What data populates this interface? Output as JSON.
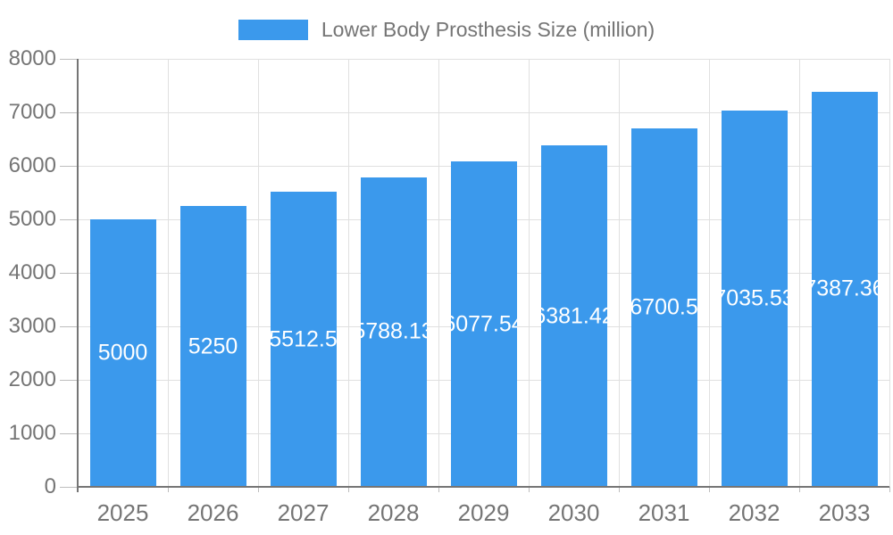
{
  "legend": {
    "label": "Lower Body Prosthesis Size (million)"
  },
  "chart_data": {
    "type": "bar",
    "title": "",
    "legend_position": "top",
    "categories": [
      "2025",
      "2026",
      "2027",
      "2028",
      "2029",
      "2030",
      "2031",
      "2032",
      "2033"
    ],
    "series": [
      {
        "name": "Lower Body Prosthesis Size (million)",
        "values": [
          5000,
          5250,
          5512.5,
          5788.13,
          6077.54,
          6381.42,
          6700.5,
          7035.53,
          7387.36
        ],
        "value_labels": [
          "5000",
          "5250",
          "5512.5",
          "5788.13",
          "6077.54",
          "6381.42",
          "6700.5",
          "7035.53",
          "7387.36"
        ]
      }
    ],
    "xlabel": "",
    "ylabel": "",
    "ylim": [
      0,
      8000
    ],
    "ytick_values": [
      0,
      1000,
      2000,
      3000,
      4000,
      5000,
      6000,
      7000,
      8000
    ],
    "ytick_labels": [
      "0",
      "1000",
      "2000",
      "3000",
      "4000",
      "5000",
      "6000",
      "7000",
      "8000"
    ],
    "grid": true,
    "colors": {
      "bar": "#3B99EC",
      "bar_label": "#FFFFFF",
      "axis_text": "#757575",
      "grid_line": "#E0E0E0",
      "tick": "#BDBDBD",
      "axis_line": "#757575",
      "background": "#FFFFFF"
    }
  }
}
